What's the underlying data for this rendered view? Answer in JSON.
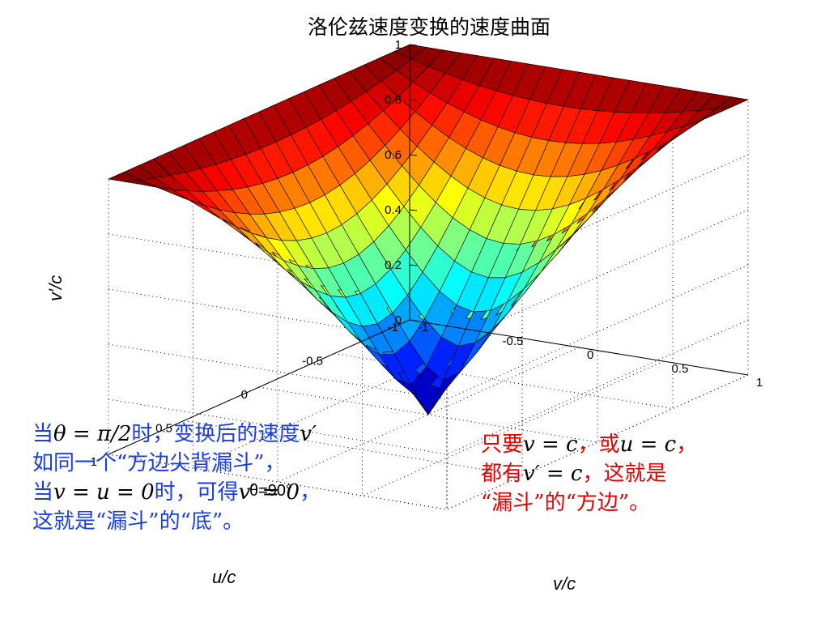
{
  "chart_data": {
    "type": "surface",
    "title": "洛伦兹速度变换的速度曲面",
    "xlabel": "u/c",
    "ylabel": "v/c",
    "zlabel": "v′/c",
    "x_range": [
      -1,
      1
    ],
    "y_range": [
      -1,
      1
    ],
    "z_range": [
      0,
      1
    ],
    "x_ticks": [
      "-1",
      "-0.5",
      "0",
      "0.5",
      "1"
    ],
    "y_ticks": [
      "-1",
      "-0.5",
      "0",
      "0.5",
      "1"
    ],
    "z_ticks": [
      "0",
      "0.2",
      "0.4",
      "0.6",
      "0.8",
      "1"
    ],
    "grid": true,
    "annotation": "θ=90°",
    "colormap": "jet"
  },
  "notes": {
    "left": {
      "line1": [
        "当",
        "θ = π/2",
        "时，变换后的速度",
        "v′"
      ],
      "line2": "如同一个“方边尖背漏斗”，",
      "line3": [
        "当",
        "v = u = 0",
        "时，可得",
        "v′ = 0",
        "，"
      ],
      "line4": "这就是“漏斗”的“底”。"
    },
    "right": {
      "line1": [
        "只要",
        "v = c",
        "，或",
        "u = c",
        "，"
      ],
      "line2": [
        "都有",
        "v′ = c",
        "，这就是"
      ],
      "line3": "“漏斗”的“方边”。"
    }
  },
  "colors": {
    "blue_note": "#1a3ce6",
    "red_note": "#e60000"
  }
}
